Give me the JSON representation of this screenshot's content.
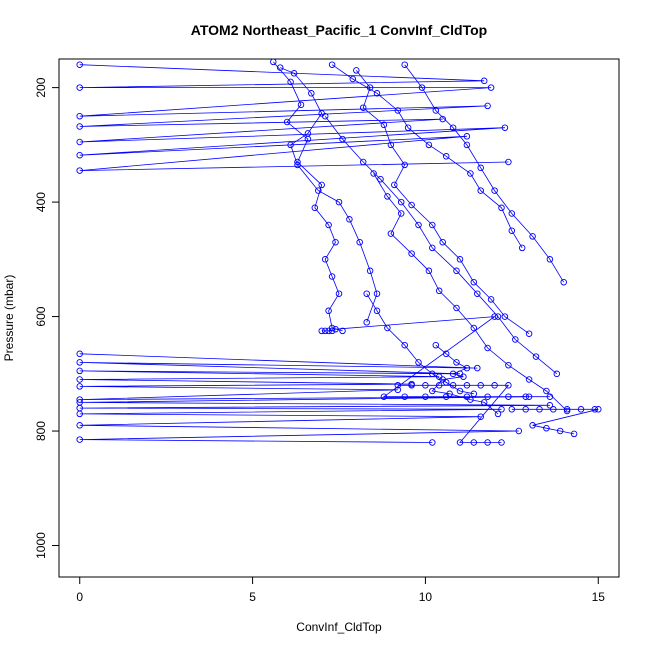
{
  "chart_data": {
    "type": "scatter",
    "title": "ATOM2 Northeast_Pacific_1 ConvInf_CldTop",
    "xlabel": "ConvInf_CldTop",
    "ylabel": "Pressure (mbar)",
    "xlim": [
      -0.6,
      15.6
    ],
    "ylim": [
      1055,
      150
    ],
    "y_reversed": true,
    "x_ticks": [
      0,
      5,
      10,
      15
    ],
    "y_ticks": [
      200,
      400,
      600,
      800,
      1000
    ],
    "grid": false,
    "legend": "none",
    "marker": "open-circle",
    "connected": true,
    "color": "#0000ff",
    "series": [
      {
        "x": [
          0,
          11.7,
          0,
          11.9,
          0,
          11.8,
          0,
          10.5,
          0,
          12.3,
          0,
          11.2,
          0,
          12.4
        ],
        "y": [
          160,
          188,
          200,
          200,
          250,
          232,
          268,
          255,
          295,
          270,
          318,
          285,
          345,
          330
        ]
      },
      {
        "x": [
          5.6,
          6.1,
          6.4,
          6.0,
          6.6,
          6.3,
          7.0,
          6.8,
          7.2,
          7.4,
          7.1,
          7.3,
          7.5,
          7.2,
          7.3,
          7.6
        ],
        "y": [
          155,
          190,
          230,
          260,
          290,
          330,
          370,
          410,
          440,
          470,
          500,
          530,
          560,
          590,
          620,
          625
        ]
      },
      {
        "x": [
          5.8,
          6.2,
          6.7,
          7.0,
          6.6,
          6.1,
          6.3,
          6.9,
          7.5,
          7.8,
          8.1,
          8.4,
          8.6,
          8.3
        ],
        "y": [
          165,
          175,
          210,
          245,
          280,
          300,
          335,
          380,
          400,
          430,
          470,
          520,
          560,
          610
        ]
      },
      {
        "x": [
          7.3,
          7.9,
          8.6,
          9.2,
          9.5,
          10.1,
          10.6,
          11.3,
          11.6,
          12.2,
          12.5,
          12.8
        ],
        "y": [
          160,
          185,
          210,
          240,
          270,
          300,
          320,
          350,
          380,
          410,
          450,
          480
        ]
      },
      {
        "x": [
          8.0,
          8.4,
          8.2,
          8.8,
          9.0,
          9.4,
          9.1,
          9.6,
          10.2,
          10.5,
          11.0,
          11.4,
          11.9,
          12.3,
          13.0
        ],
        "y": [
          170,
          200,
          235,
          265,
          300,
          335,
          370,
          405,
          440,
          470,
          500,
          540,
          570,
          600,
          630
        ]
      },
      {
        "x": [
          9.4,
          9.9,
          10.3,
          10.8,
          11.2,
          11.6,
          12.0,
          12.5,
          13.1,
          13.6,
          14.0
        ],
        "y": [
          160,
          200,
          240,
          270,
          300,
          340,
          380,
          420,
          460,
          500,
          540
        ]
      },
      {
        "x": [
          7.1,
          7.6,
          8.2,
          8.7,
          9.3,
          9.8,
          10.2,
          10.9,
          11.5,
          12.1,
          12.6,
          13.2,
          13.8
        ],
        "y": [
          250,
          290,
          330,
          360,
          400,
          440,
          480,
          520,
          560,
          600,
          640,
          670,
          700
        ]
      },
      {
        "x": [
          8.5,
          8.9,
          9.3,
          9.0,
          9.6,
          10.1,
          10.4,
          10.9,
          11.4,
          11.8,
          12.4,
          13.0,
          13.5,
          14.1
        ],
        "y": [
          350,
          390,
          420,
          455,
          490,
          520,
          555,
          585,
          620,
          655,
          685,
          710,
          730,
          765
        ]
      },
      {
        "x": [
          0,
          11.5,
          0,
          11.0,
          0,
          10.4,
          0,
          9.6,
          0,
          9.2,
          0,
          12.9,
          0,
          13.6,
          0,
          12.2,
          0,
          11.6,
          0,
          12.7,
          0,
          10.2
        ],
        "y": [
          665,
          690,
          680,
          700,
          695,
          705,
          710,
          718,
          722,
          728,
          745,
          740,
          750,
          755,
          760,
          762,
          770,
          775,
          790,
          800,
          815,
          820
        ]
      },
      {
        "x": [
          7.0,
          7.1,
          7.2,
          7.3,
          7.4,
          12.0,
          8.8,
          9.4,
          10.0,
          10.6,
          11.2,
          11.8,
          12.4,
          13.0,
          13.6
        ],
        "y": [
          625,
          625,
          625,
          625,
          622,
          600,
          740,
          740,
          740,
          740,
          740,
          740,
          740,
          740,
          740
        ]
      },
      {
        "x": [
          12.5,
          12.9,
          13.3,
          13.7,
          14.1,
          14.5,
          14.9,
          15.0,
          13.1,
          13.5,
          13.9,
          14.3
        ],
        "y": [
          762,
          762,
          762,
          762,
          762,
          762,
          762,
          762,
          790,
          795,
          800,
          805
        ]
      },
      {
        "x": [
          9.2,
          9.6,
          10.0,
          10.4,
          10.8,
          11.2,
          11.6,
          12.0,
          12.4,
          11.0,
          11.4,
          11.8,
          12.2
        ],
        "y": [
          720,
          720,
          720,
          720,
          720,
          720,
          720,
          720,
          720,
          820,
          820,
          820,
          820
        ]
      },
      {
        "x": [
          10.3,
          10.6,
          10.9,
          11.2,
          10.8,
          11.1,
          10.5,
          10.2,
          10.7,
          11.3,
          11.7,
          12.1
        ],
        "y": [
          650,
          665,
          680,
          690,
          700,
          705,
          710,
          730,
          735,
          745,
          750,
          770
        ]
      },
      {
        "x": [
          8.3,
          8.6,
          8.9,
          9.4,
          9.8,
          10.2,
          10.6,
          11.0,
          11.4
        ],
        "y": [
          560,
          590,
          620,
          650,
          680,
          700,
          715,
          730,
          735
        ]
      }
    ]
  }
}
